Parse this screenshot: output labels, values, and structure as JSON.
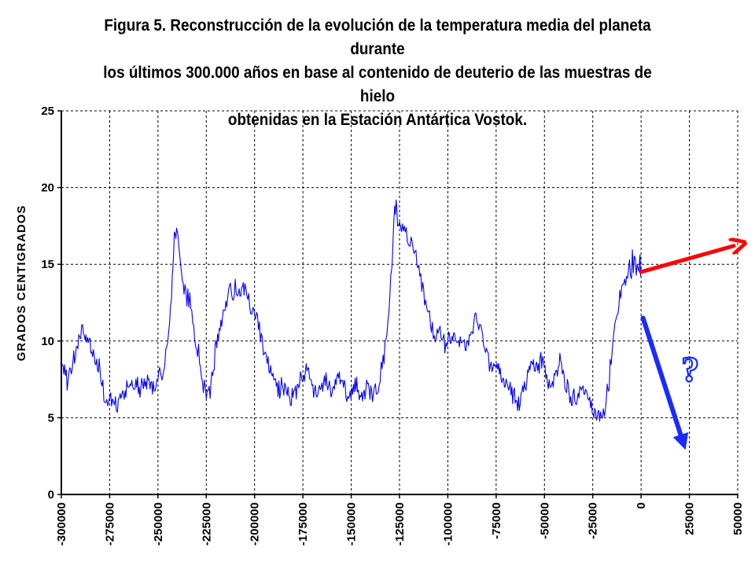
{
  "title_lines": [
    "Figura 5. Reconstrucción de la evolución de la temperatura media del planeta durante",
    "los últimos 300.000 años en base al contenido de deuterio de las muestras de hielo",
    "obtenidas en la Estación Antártica Vostok."
  ],
  "colors": {
    "series": "#0000ff",
    "up_arrow": "#ff0000",
    "down_arrow": "#1a2bff",
    "question": "#1a2bff",
    "grid": "#000000"
  },
  "annotations": {
    "question_mark": "?"
  },
  "chart_data": {
    "type": "line",
    "title": "Figura 5. Reconstrucción de la evolución de la temperatura media del planeta durante los últimos 300.000 años en base al contenido de deuterio de las muestras de hielo obtenidas en la Estación Antártica Vostok.",
    "xlabel": "",
    "ylabel": "GRADOS CENTIGRADOS",
    "xlim": [
      -300000,
      50000
    ],
    "ylim": [
      0,
      25
    ],
    "grid": true,
    "legend": "none",
    "x_ticks": [
      -300000,
      -275000,
      -250000,
      -225000,
      -200000,
      -175000,
      -150000,
      -125000,
      -100000,
      -75000,
      -50000,
      -25000,
      0,
      25000,
      50000
    ],
    "x_tick_labels": [
      "-300000",
      "-275000",
      "-250000",
      "-225000",
      "-200000",
      "-175000",
      "-150000",
      "-125000",
      "-100000",
      "-75000",
      "-50000",
      "-25000",
      "0",
      "25000",
      "50000"
    ],
    "y_ticks": [
      0,
      5,
      10,
      15,
      20,
      25
    ],
    "y_tick_labels": [
      "0",
      "5",
      "10",
      "15",
      "20",
      "25"
    ],
    "series": [
      {
        "x": [
          -300000,
          -297000,
          -294000,
          -291000,
          -289000,
          -286000,
          -283000,
          -280000,
          -278000,
          -276000,
          -274000,
          -272000,
          -270000,
          -267000,
          -264000,
          -261000,
          -258000,
          -255000,
          -252000,
          -250000,
          -247000,
          -245000,
          -243000,
          -241500,
          -240000,
          -238500,
          -237000,
          -235000,
          -233000,
          -231000,
          -229000,
          -227000,
          -225000,
          -223000,
          -220000,
          -217000,
          -214000,
          -212000,
          -210000,
          -208000,
          -205000,
          -203000,
          -201000,
          -199000,
          -197000,
          -195000,
          -193000,
          -190000,
          -187000,
          -184000,
          -181000,
          -178000,
          -175000,
          -172000,
          -169000,
          -166000,
          -163000,
          -160000,
          -157000,
          -154000,
          -151000,
          -148000,
          -145000,
          -142000,
          -139000,
          -137000,
          -135000,
          -133000,
          -131000,
          -129000,
          -127500,
          -126000,
          -124000,
          -122000,
          -120000,
          -118000,
          -116000,
          -114000,
          -112000,
          -110000,
          -108000,
          -106000,
          -104000,
          -102000,
          -100000,
          -97000,
          -94000,
          -91000,
          -88000,
          -86000,
          -84000,
          -82000,
          -80000,
          -78000,
          -75000,
          -72000,
          -69000,
          -66000,
          -63000,
          -60000,
          -57000,
          -54000,
          -51000,
          -48000,
          -45000,
          -42000,
          -39000,
          -36000,
          -33000,
          -30000,
          -27000,
          -24000,
          -21000,
          -19000,
          -17000,
          -15000,
          -13000,
          -11000,
          -9000,
          -7000,
          -5000,
          -3000,
          -1000,
          0
        ],
        "y": [
          9.0,
          7.5,
          8.5,
          10.0,
          10.8,
          10.0,
          9.3,
          8.0,
          6.5,
          6.2,
          5.8,
          5.7,
          6.0,
          6.8,
          7.0,
          7.2,
          7.0,
          7.2,
          6.8,
          7.5,
          8.0,
          10.0,
          13.0,
          17.0,
          17.0,
          15.0,
          13.5,
          13.0,
          12.5,
          10.0,
          9.0,
          7.5,
          6.5,
          7.0,
          9.5,
          11.5,
          12.8,
          13.5,
          13.4,
          13.0,
          13.2,
          12.5,
          12.0,
          11.5,
          10.5,
          9.0,
          8.5,
          7.5,
          7.0,
          6.5,
          6.5,
          7.0,
          7.5,
          8.0,
          6.5,
          7.0,
          7.5,
          7.0,
          7.5,
          7.0,
          6.0,
          7.5,
          6.5,
          7.0,
          6.5,
          7.0,
          7.5,
          9.0,
          11.5,
          15.0,
          19.0,
          18.0,
          17.5,
          17.0,
          16.5,
          16.0,
          15.0,
          14.0,
          13.0,
          12.0,
          10.5,
          10.0,
          10.5,
          10.0,
          10.0,
          10.3,
          10.0,
          9.5,
          10.0,
          12.0,
          11.0,
          10.0,
          9.0,
          8.5,
          8.0,
          7.5,
          7.0,
          6.5,
          6.0,
          7.0,
          8.5,
          8.0,
          9.0,
          7.0,
          7.5,
          8.5,
          7.0,
          6.0,
          6.5,
          7.0,
          6.0,
          5.0,
          5.0,
          5.5,
          7.0,
          9.5,
          11.5,
          12.5,
          13.5,
          14.5,
          15.0,
          14.5,
          15.0,
          14.8
        ],
        "name": ""
      }
    ],
    "annotations": [
      {
        "type": "arrow",
        "color": "red",
        "from": [
          0,
          14.5
        ],
        "to": [
          48000,
          16.2
        ]
      },
      {
        "type": "arrow",
        "color": "blue",
        "from": [
          1000,
          11.5
        ],
        "to": [
          22000,
          3.3
        ]
      },
      {
        "type": "text",
        "text": "?",
        "at": [
          25500,
          8.2
        ]
      }
    ]
  }
}
